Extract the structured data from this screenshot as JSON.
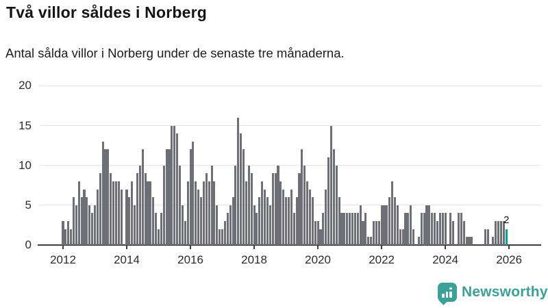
{
  "header": {
    "title": "Två villor såldes i Norberg",
    "subtitle": "Antal sålda villor i Norberg under de senaste tre månaderna."
  },
  "chart_data": {
    "type": "bar",
    "title": "Två villor såldes i Norberg",
    "subtitle": "Antal sålda villor i Norberg under de senaste tre månaderna.",
    "ylim": [
      0,
      20
    ],
    "y_ticks": [
      "0",
      "5",
      "10",
      "15",
      "20"
    ],
    "x_ticks": [
      "2012",
      "2014",
      "2016",
      "2018",
      "2020",
      "2022",
      "2024",
      "2026"
    ],
    "grid": true,
    "start_year": 2012,
    "frequency": "monthly",
    "series": [
      {
        "year": 2012,
        "values": [
          3,
          2,
          3,
          2,
          6,
          5,
          8,
          6,
          7,
          6,
          5,
          4
        ]
      },
      {
        "year": 2013,
        "values": [
          5,
          7,
          9,
          13,
          12,
          12,
          9,
          8,
          8,
          8,
          7,
          0
        ]
      },
      {
        "year": 2014,
        "values": [
          7,
          6,
          8,
          5,
          9,
          10,
          12,
          9,
          8,
          8,
          6,
          4
        ]
      },
      {
        "year": 2015,
        "values": [
          2,
          4,
          10,
          12,
          12,
          15,
          15,
          14,
          10,
          5,
          3,
          8
        ]
      },
      {
        "year": 2016,
        "values": [
          12,
          13,
          8,
          7,
          6,
          8,
          9,
          8,
          10,
          8,
          5,
          2
        ]
      },
      {
        "year": 2017,
        "values": [
          2,
          3,
          4,
          5,
          6,
          10,
          16,
          14,
          12,
          8,
          10,
          9
        ]
      },
      {
        "year": 2018,
        "values": [
          5,
          4,
          6,
          8,
          7,
          6,
          5,
          9,
          9,
          10,
          8,
          7
        ]
      },
      {
        "year": 2019,
        "values": [
          6,
          6,
          7,
          4,
          6,
          9,
          12,
          10,
          8,
          7,
          6,
          3
        ]
      },
      {
        "year": 2020,
        "values": [
          3,
          2,
          4,
          7,
          11,
          15,
          12,
          10,
          6,
          4,
          4,
          4
        ]
      },
      {
        "year": 2021,
        "values": [
          4,
          4,
          4,
          4,
          5,
          3,
          4,
          1,
          1,
          3,
          3,
          3
        ]
      },
      {
        "year": 2022,
        "values": [
          5,
          5,
          5,
          6,
          8,
          6,
          5,
          2,
          2,
          4,
          4,
          5
        ]
      },
      {
        "year": 2023,
        "values": [
          2,
          0,
          1,
          4,
          4,
          5,
          5,
          4,
          4,
          3,
          4,
          4
        ]
      },
      {
        "year": 2024,
        "values": [
          4,
          0,
          4,
          3,
          0,
          4,
          4,
          3,
          1,
          1,
          1,
          0
        ]
      },
      {
        "year": 2025,
        "values": [
          0,
          0,
          0,
          2,
          2,
          0,
          1,
          3,
          3,
          3,
          3,
          2
        ]
      }
    ],
    "highlight": {
      "position": "last-bar",
      "value": 2,
      "label": "2"
    },
    "colors": {
      "bar": "#6e6e76",
      "highlight_bar": "#00a29a",
      "gridline": "#e4e4e4",
      "axis_line": "#3d3d3d",
      "axis_text": "#2b2b2b"
    },
    "legend": null
  },
  "footer": {
    "logo_text": "Newsworthy",
    "logo_color": "#3aa198",
    "logo_icon": "bar-chart-speech-bubble-icon"
  }
}
